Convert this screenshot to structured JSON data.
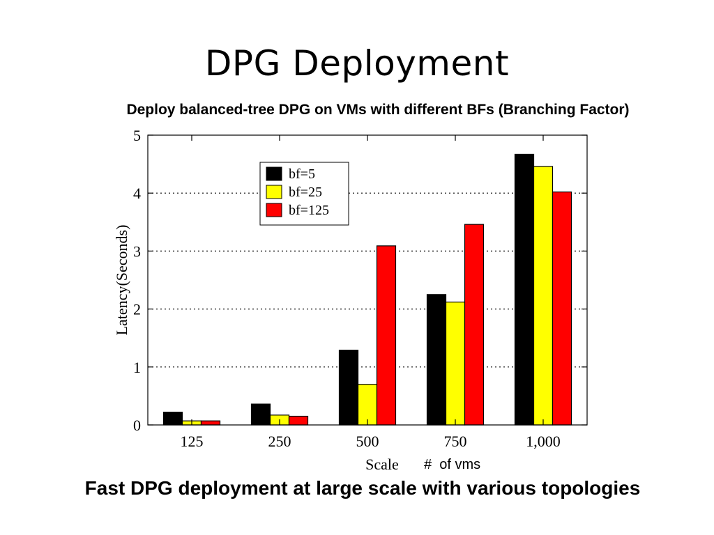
{
  "slide": {
    "title": "DPG Deployment",
    "subtitle": "Deploy balanced-tree DPG on VMs with different BFs (Branching Factor)",
    "footer": "Fast DPG deployment at large scale with various topologies",
    "scale_note": "#  of vms"
  },
  "chart_data": {
    "type": "bar",
    "categories": [
      "125",
      "250",
      "500",
      "750",
      "1,000"
    ],
    "series": [
      {
        "name": "bf=5",
        "color": "#000000",
        "values": [
          0.22,
          0.36,
          1.29,
          2.25,
          4.67
        ]
      },
      {
        "name": "bf=25",
        "color": "#ffff00",
        "values": [
          0.07,
          0.17,
          0.7,
          2.12,
          4.46
        ]
      },
      {
        "name": "bf=125",
        "color": "#ff0000",
        "values": [
          0.07,
          0.15,
          3.09,
          3.46,
          4.02
        ]
      }
    ],
    "xlabel": "Scale",
    "ylabel": "Latency(Seconds)",
    "ylim": [
      0,
      5
    ],
    "yticks": [
      "0",
      "1",
      "2",
      "3",
      "4",
      "5"
    ],
    "grid": "horizontal dotted",
    "legend_position": "top-left"
  }
}
